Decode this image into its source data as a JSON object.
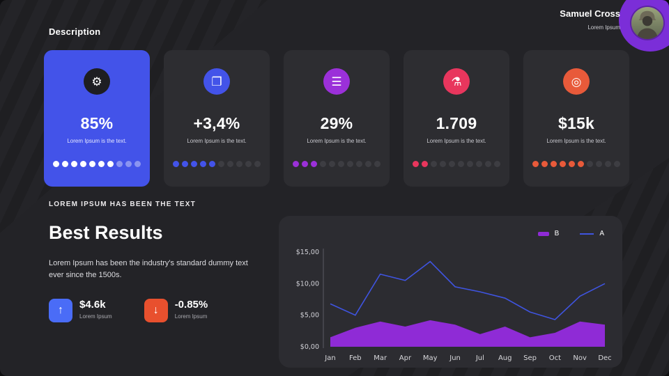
{
  "colors": {
    "background": "#232327",
    "card_bg": "#2d2d31",
    "highlight_bg": "#4353e9",
    "icon_dark": "#1e1e22",
    "dot_empty": "#3d3d42",
    "chart_card_bg": "#2c2c31",
    "up_box": "#4a6cf7",
    "down_box": "#e8502e",
    "decoration_purple": "#7b2ed8"
  },
  "header": {
    "title": "Description",
    "user_name": "Samuel Cross",
    "user_subtitle": "Lorem Ipsum"
  },
  "cards": [
    {
      "value": "85%",
      "caption": "Lorem Ipsum is the text.",
      "icon": "gear-icon",
      "accent": "#4353e9",
      "dots_filled": 7,
      "dots_total": 10,
      "highlight": true
    },
    {
      "value": "+3,4%",
      "caption": "Lorem Ipsum is the text.",
      "icon": "journal-icon",
      "accent": "#4353e9",
      "dots_filled": 5,
      "dots_total": 10,
      "highlight": false
    },
    {
      "value": "29%",
      "caption": "Lorem Ipsum is the text.",
      "icon": "coins-icon",
      "accent": "#9b30d9",
      "dots_filled": 3,
      "dots_total": 10,
      "highlight": false
    },
    {
      "value": "1.709",
      "caption": "Lorem Ipsum is the text.",
      "icon": "flask-icon",
      "accent": "#e8365d",
      "dots_filled": 2,
      "dots_total": 10,
      "highlight": false
    },
    {
      "value": "$15k",
      "caption": "Lorem Ipsum is the text.",
      "icon": "target-icon",
      "accent": "#e85a3a",
      "dots_filled": 6,
      "dots_total": 10,
      "highlight": false
    }
  ],
  "results": {
    "eyebrow": "LOREM IPSUM HAS BEEN THE TEXT",
    "title": "Best Results",
    "body": "Lorem Ipsum has been the industry's standard dummy text ever since the 1500s.",
    "stats": [
      {
        "value": "$4.6k",
        "label": "Lorem Ipsum",
        "direction": "up"
      },
      {
        "value": "-0.85%",
        "label": "Lorem Ipsum",
        "direction": "down"
      }
    ]
  },
  "chart_data": {
    "type": "line",
    "categories": [
      "Jan",
      "Feb",
      "Mar",
      "Apr",
      "May",
      "Jun",
      "Jul",
      "Aug",
      "Sep",
      "Oct",
      "Nov",
      "Dec"
    ],
    "series": [
      {
        "name": "B",
        "type": "area",
        "color": "#8f2bd6",
        "values": [
          1.5,
          3.0,
          4.0,
          3.2,
          4.2,
          3.5,
          2.0,
          3.2,
          1.5,
          2.2,
          4.0,
          3.5
        ]
      },
      {
        "name": "A",
        "type": "line",
        "color": "#3f54e0",
        "values": [
          6.8,
          5.0,
          11.5,
          10.5,
          13.5,
          9.5,
          8.7,
          7.7,
          5.5,
          4.3,
          8.0,
          10.0
        ]
      }
    ],
    "ylim": [
      0,
      15
    ],
    "y_tick_values": [
      0,
      5,
      10,
      15
    ],
    "y_tick_labels": [
      "$0,00",
      "$5,00",
      "$10,00",
      "$15,00"
    ],
    "legend_position": "top-right",
    "grid": false
  }
}
